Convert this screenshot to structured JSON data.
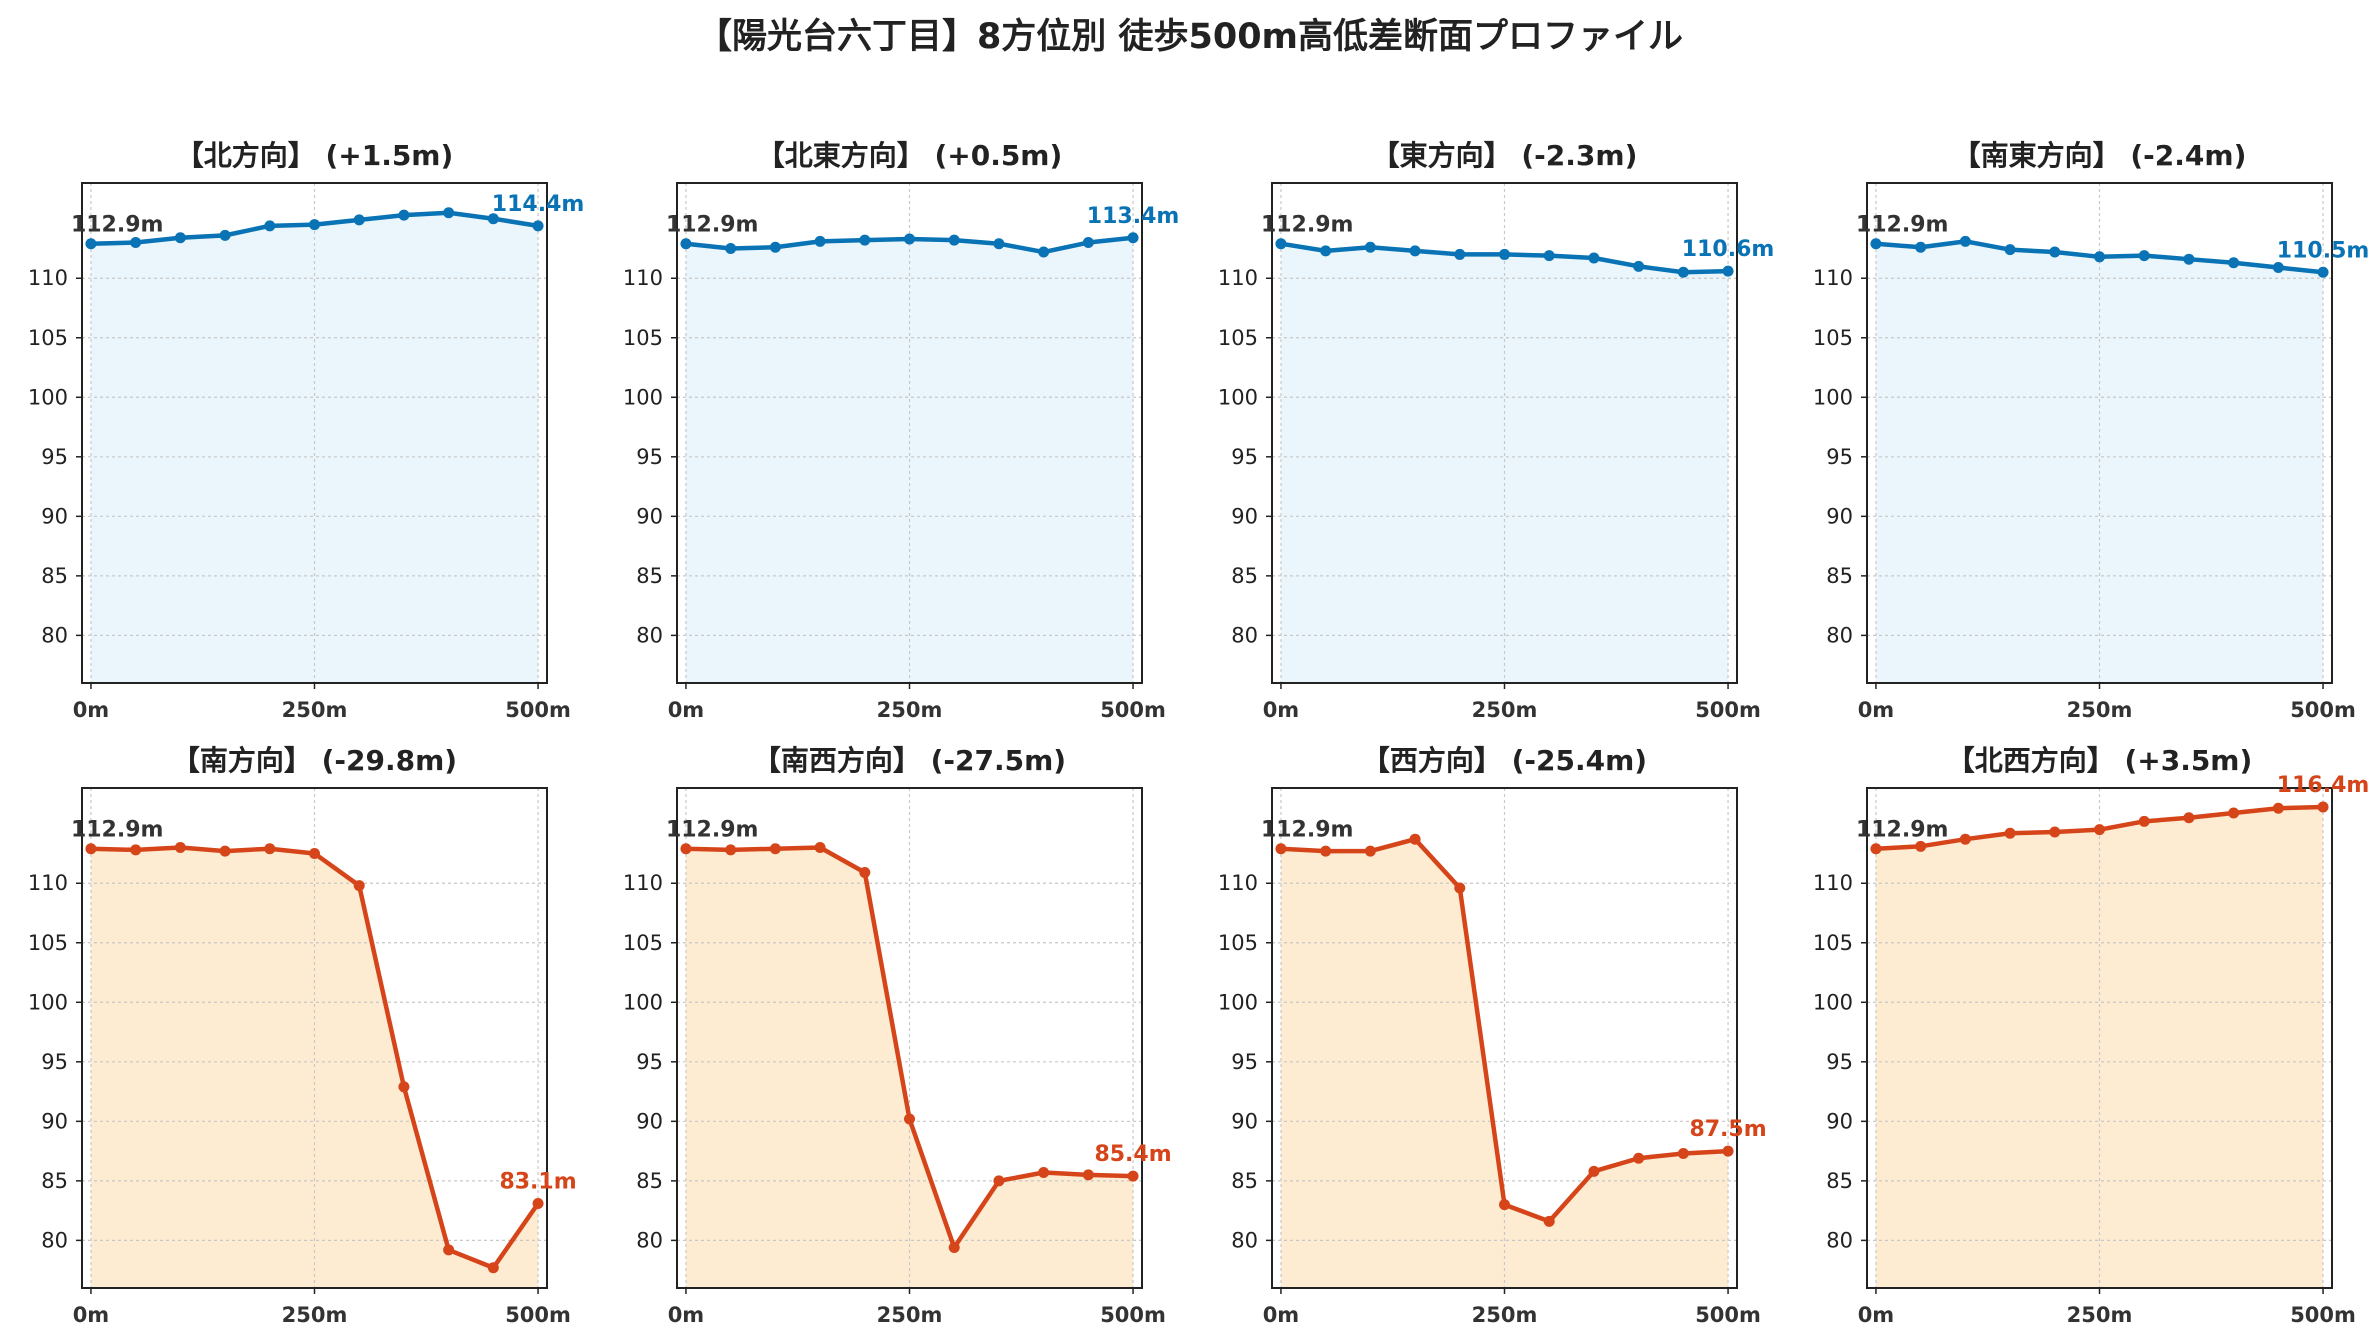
{
  "title": "【陽光台六丁目】8方位別 徒歩500m高低差断面プロファイル",
  "colors": {
    "up": "#0A73B5",
    "up_fill": "#EAF6FB",
    "down": "#D6451A",
    "down_fill": "#FDEBD2",
    "start_label": "#333333"
  },
  "chart_data": [
    {
      "type": "line",
      "title": "【北方向】 (+1.5m)",
      "group": "up",
      "x": [
        0,
        50,
        100,
        150,
        200,
        250,
        300,
        350,
        400,
        450,
        500
      ],
      "y": [
        112.9,
        113.0,
        113.4,
        113.6,
        114.4,
        114.5,
        114.9,
        115.3,
        115.5,
        115.0,
        114.4
      ],
      "start_label": "112.9m",
      "end_label": "114.4m",
      "x_ticks": [
        {
          "v": 0,
          "label": "0m"
        },
        {
          "v": 250,
          "label": "250m"
        },
        {
          "v": 500,
          "label": "500m"
        }
      ],
      "y_ticks": [
        80,
        85,
        90,
        95,
        100,
        105,
        110
      ],
      "xlim": [
        -10,
        510
      ],
      "ylim": [
        76,
        118
      ],
      "grid": true
    },
    {
      "type": "line",
      "title": "【北東方向】 (+0.5m)",
      "group": "up",
      "x": [
        0,
        50,
        100,
        150,
        200,
        250,
        300,
        350,
        400,
        450,
        500
      ],
      "y": [
        112.9,
        112.5,
        112.6,
        113.1,
        113.2,
        113.3,
        113.2,
        112.9,
        112.2,
        113.0,
        113.4
      ],
      "start_label": "112.9m",
      "end_label": "113.4m",
      "x_ticks": [
        {
          "v": 0,
          "label": "0m"
        },
        {
          "v": 250,
          "label": "250m"
        },
        {
          "v": 500,
          "label": "500m"
        }
      ],
      "y_ticks": [
        80,
        85,
        90,
        95,
        100,
        105,
        110
      ],
      "xlim": [
        -10,
        510
      ],
      "ylim": [
        76,
        118
      ],
      "grid": true
    },
    {
      "type": "line",
      "title": "【東方向】 (-2.3m)",
      "group": "up",
      "x": [
        0,
        50,
        100,
        150,
        200,
        250,
        300,
        350,
        400,
        450,
        500
      ],
      "y": [
        112.9,
        112.3,
        112.6,
        112.3,
        112.0,
        112.0,
        111.9,
        111.7,
        111.0,
        110.5,
        110.6
      ],
      "start_label": "112.9m",
      "end_label": "110.6m",
      "x_ticks": [
        {
          "v": 0,
          "label": "0m"
        },
        {
          "v": 250,
          "label": "250m"
        },
        {
          "v": 500,
          "label": "500m"
        }
      ],
      "y_ticks": [
        80,
        85,
        90,
        95,
        100,
        105,
        110
      ],
      "xlim": [
        -10,
        510
      ],
      "ylim": [
        76,
        118
      ],
      "grid": true
    },
    {
      "type": "line",
      "title": "【南東方向】 (-2.4m)",
      "group": "up",
      "x": [
        0,
        50,
        100,
        150,
        200,
        250,
        300,
        350,
        400,
        450,
        500
      ],
      "y": [
        112.9,
        112.6,
        113.1,
        112.4,
        112.2,
        111.8,
        111.9,
        111.6,
        111.3,
        110.9,
        110.5
      ],
      "start_label": "112.9m",
      "end_label": "110.5m",
      "x_ticks": [
        {
          "v": 0,
          "label": "0m"
        },
        {
          "v": 250,
          "label": "250m"
        },
        {
          "v": 500,
          "label": "500m"
        }
      ],
      "y_ticks": [
        80,
        85,
        90,
        95,
        100,
        105,
        110
      ],
      "xlim": [
        -10,
        510
      ],
      "ylim": [
        76,
        118
      ],
      "grid": true
    },
    {
      "type": "line",
      "title": "【南方向】 (-29.8m)",
      "group": "down",
      "x": [
        0,
        50,
        100,
        150,
        200,
        250,
        300,
        350,
        400,
        450,
        500
      ],
      "y": [
        112.9,
        112.8,
        113.0,
        112.7,
        112.9,
        112.5,
        109.8,
        92.9,
        79.2,
        77.7,
        83.1
      ],
      "start_label": "112.9m",
      "end_label": "83.1m",
      "x_ticks": [
        {
          "v": 0,
          "label": "0m"
        },
        {
          "v": 250,
          "label": "250m"
        },
        {
          "v": 500,
          "label": "500m"
        }
      ],
      "y_ticks": [
        80,
        85,
        90,
        95,
        100,
        105,
        110
      ],
      "xlim": [
        -10,
        510
      ],
      "ylim": [
        76,
        118
      ],
      "grid": true
    },
    {
      "type": "line",
      "title": "【南西方向】 (-27.5m)",
      "group": "down",
      "x": [
        0,
        50,
        100,
        150,
        200,
        250,
        300,
        350,
        400,
        450,
        500
      ],
      "y": [
        112.9,
        112.8,
        112.9,
        113.0,
        110.9,
        90.2,
        79.4,
        85.0,
        85.7,
        85.5,
        85.4
      ],
      "start_label": "112.9m",
      "end_label": "85.4m",
      "x_ticks": [
        {
          "v": 0,
          "label": "0m"
        },
        {
          "v": 250,
          "label": "250m"
        },
        {
          "v": 500,
          "label": "500m"
        }
      ],
      "y_ticks": [
        80,
        85,
        90,
        95,
        100,
        105,
        110
      ],
      "xlim": [
        -10,
        510
      ],
      "ylim": [
        76,
        118
      ],
      "grid": true
    },
    {
      "type": "line",
      "title": "【西方向】 (-25.4m)",
      "group": "down",
      "x": [
        0,
        50,
        100,
        150,
        200,
        250,
        300,
        350,
        400,
        450,
        500
      ],
      "y": [
        112.9,
        112.7,
        112.7,
        113.7,
        109.6,
        83.0,
        81.6,
        85.8,
        86.9,
        87.3,
        87.5
      ],
      "start_label": "112.9m",
      "end_label": "87.5m",
      "x_ticks": [
        {
          "v": 0,
          "label": "0m"
        },
        {
          "v": 250,
          "label": "250m"
        },
        {
          "v": 500,
          "label": "500m"
        }
      ],
      "y_ticks": [
        80,
        85,
        90,
        95,
        100,
        105,
        110
      ],
      "xlim": [
        -10,
        510
      ],
      "ylim": [
        76,
        118
      ],
      "grid": true
    },
    {
      "type": "line",
      "title": "【北西方向】 (+3.5m)",
      "group": "down",
      "x": [
        0,
        50,
        100,
        150,
        200,
        250,
        300,
        350,
        400,
        450,
        500
      ],
      "y": [
        112.9,
        113.1,
        113.7,
        114.2,
        114.3,
        114.5,
        115.2,
        115.5,
        115.9,
        116.3,
        116.4
      ],
      "start_label": "112.9m",
      "end_label": "116.4m",
      "x_ticks": [
        {
          "v": 0,
          "label": "0m"
        },
        {
          "v": 250,
          "label": "250m"
        },
        {
          "v": 500,
          "label": "500m"
        }
      ],
      "y_ticks": [
        80,
        85,
        90,
        95,
        100,
        105,
        110
      ],
      "xlim": [
        -10,
        510
      ],
      "ylim": [
        76,
        118
      ],
      "grid": true
    }
  ]
}
